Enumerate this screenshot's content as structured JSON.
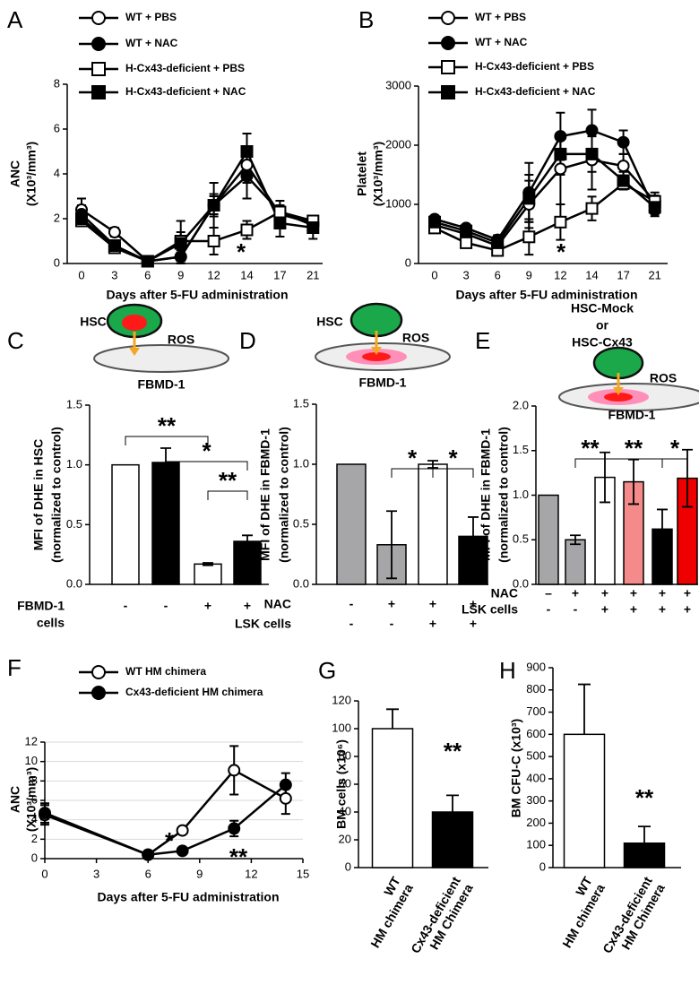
{
  "chart_data": [
    {
      "panel": "A",
      "type": "line",
      "ylabel": [
        "ANC",
        "(X10³/mm³)"
      ],
      "xlabel": "Days after 5-FU administration",
      "categories": [
        "0",
        "3",
        "6",
        "9",
        "12",
        "14",
        "17",
        "21"
      ],
      "ylim": [
        0,
        8
      ],
      "yticks": [
        0,
        2,
        4,
        6,
        8
      ],
      "series": [
        {
          "name": "WT + PBS",
          "color": "#000000",
          "marker": "circle",
          "marker_fill": "#ffffff",
          "values": [
            2.4,
            1.4,
            0.1,
            0.3,
            2.6,
            4.4,
            2.2,
            1.8
          ],
          "errors": [
            0.5,
            0.2,
            0.1,
            0.3,
            0.4,
            0.8,
            0.4,
            0.3
          ]
        },
        {
          "name": "WT + NAC",
          "color": "#000000",
          "marker": "circle",
          "marker_fill": "#000000",
          "values": [
            2.2,
            0.8,
            0.1,
            0.3,
            2.6,
            3.9,
            2.3,
            1.7
          ],
          "errors": [
            0.4,
            0.1,
            0.1,
            0.2,
            1.0,
            1.0,
            0.5,
            0.3
          ]
        },
        {
          "name": "H-Cx43-deficient + PBS",
          "color": "#000000",
          "marker": "square",
          "marker_fill": "#ffffff",
          "values": [
            1.9,
            0.7,
            0.1,
            1.0,
            1.0,
            1.5,
            2.3,
            1.9
          ],
          "errors": [
            0.2,
            0.1,
            0.1,
            0.9,
            0.6,
            0.4,
            0.3,
            0.2
          ]
        },
        {
          "name": "H-Cx43-deficient + NAC",
          "color": "#000000",
          "marker": "square",
          "marker_fill": "#000000",
          "values": [
            2.0,
            0.8,
            0.1,
            0.9,
            2.6,
            5.0,
            1.8,
            1.6
          ],
          "errors": [
            0.3,
            0.2,
            0.1,
            0.5,
            0.5,
            0.8,
            0.6,
            0.5
          ]
        }
      ],
      "annotations": [
        "*"
      ]
    },
    {
      "panel": "B",
      "type": "line",
      "ylabel": [
        "Platelet",
        "(X10³/mm³)"
      ],
      "xlabel": "Days after 5-FU administration",
      "categories": [
        "0",
        "3",
        "6",
        "9",
        "12",
        "14",
        "17",
        "21"
      ],
      "ylim": [
        0,
        3000
      ],
      "yticks": [
        0,
        1000,
        2000,
        3000
      ],
      "series": [
        {
          "name": "WT + PBS",
          "color": "#000000",
          "marker": "circle",
          "marker_fill": "#ffffff",
          "values": [
            650,
            500,
            300,
            1000,
            1600,
            1750,
            1650,
            1050
          ],
          "errors": [
            50,
            50,
            80,
            400,
            600,
            500,
            200,
            100
          ]
        },
        {
          "name": "WT + NAC",
          "color": "#000000",
          "marker": "circle",
          "marker_fill": "#000000",
          "values": [
            750,
            600,
            400,
            1200,
            2150,
            2250,
            2050,
            900
          ],
          "errors": [
            60,
            50,
            80,
            500,
            400,
            350,
            200,
            100
          ]
        },
        {
          "name": "H-Cx43-deficient + PBS",
          "color": "#000000",
          "marker": "square",
          "marker_fill": "#ffffff",
          "values": [
            600,
            350,
            220,
            450,
            700,
            930,
            1350,
            1050
          ],
          "errors": [
            50,
            50,
            50,
            300,
            300,
            200,
            100,
            150
          ]
        },
        {
          "name": "H-Cx43-deficient + NAC",
          "color": "#000000",
          "marker": "square",
          "marker_fill": "#000000",
          "values": [
            700,
            550,
            350,
            1100,
            1850,
            1850,
            1400,
            950
          ],
          "errors": [
            60,
            50,
            80,
            400,
            350,
            300,
            150,
            100
          ]
        }
      ],
      "annotations": [
        "*"
      ]
    },
    {
      "panel": "C",
      "type": "bar",
      "diagram": {
        "cell": [
          "HSC"
        ],
        "signal": "ROS",
        "stroma": "FBMD-1"
      },
      "ylabel": [
        "MFI of DHE in HSC",
        "(normalized to control)"
      ],
      "values": [
        1.0,
        1.02,
        0.17,
        0.36
      ],
      "errors": [
        null,
        0.12,
        0.01,
        0.05
      ],
      "colors": [
        "#ffffff",
        "#000000",
        "#ffffff",
        "#000000"
      ],
      "error_direction": "both",
      "ylim": [
        0,
        1.5
      ],
      "yticks": [
        {
          "value": 0,
          "label": "0.0"
        },
        0.5,
        {
          "value": 1,
          "label": "1.0"
        },
        1.5
      ],
      "conditions": [
        {
          "label": [
            "FBMD-1",
            "cells"
          ],
          "marks": [
            "-",
            "-",
            "+",
            "+"
          ]
        }
      ],
      "significance": [
        "**",
        "*",
        "**"
      ]
    },
    {
      "panel": "D",
      "type": "bar",
      "diagram": {
        "cell": [
          "HSC"
        ],
        "signal": "ROS",
        "stroma": "FBMD-1"
      },
      "ylabel": [
        "MFI of DHE in FBMD-1",
        "(normalized to control)"
      ],
      "values": [
        1.0,
        0.33,
        1.0,
        0.4
      ],
      "errors": [
        null,
        0.28,
        0.03,
        0.16
      ],
      "colors": [
        "#a6a6a8",
        "#a6a6a8",
        "#ffffff",
        "#000000"
      ],
      "error_direction": "both",
      "ylim": [
        0,
        1.5
      ],
      "yticks": [
        {
          "value": 0,
          "label": "0.0"
        },
        0.5,
        {
          "value": 1,
          "label": "1.0"
        },
        1.5
      ],
      "conditions": [
        {
          "label": [
            "NAC"
          ],
          "marks": [
            "-",
            "+",
            "+",
            "+"
          ]
        },
        {
          "label": [
            "LSK cells"
          ],
          "marks": [
            "-",
            "-",
            "+",
            "+"
          ]
        }
      ],
      "significance": [
        "*",
        "*"
      ]
    },
    {
      "panel": "E",
      "type": "bar",
      "diagram": {
        "cell": [
          "HSC-Mock",
          "or",
          "HSC-Cx43"
        ],
        "signal": "ROS",
        "stroma": "FBMD-1"
      },
      "ylabel": [
        "MFI of DHE in FBMD-1",
        "(normalized to control)"
      ],
      "values": [
        1.0,
        0.5,
        1.2,
        1.15,
        0.62,
        1.19
      ],
      "errors": [
        null,
        0.05,
        0.28,
        0.25,
        0.22,
        0.32
      ],
      "colors": [
        "#a6a6a8",
        "#a6a6a8",
        "#ffffff",
        "#f58a8a",
        "#000000",
        "#ee0000"
      ],
      "error_direction": "both",
      "ylim": [
        0,
        2
      ],
      "yticks": [
        {
          "value": 0,
          "label": "0.0"
        },
        0.5,
        {
          "value": 1,
          "label": "1.0"
        },
        1.5,
        {
          "value": 2,
          "label": "2.0"
        }
      ],
      "conditions": [
        {
          "label": [
            "NAC"
          ],
          "marks": [
            "–",
            "+",
            "+",
            "+",
            "+",
            "+"
          ]
        },
        {
          "label": [
            "LSK cells"
          ],
          "marks": [
            "-",
            "-",
            "+",
            "+",
            "+",
            "+"
          ]
        }
      ],
      "significance": [
        "**",
        "**",
        "*"
      ]
    },
    {
      "panel": "F",
      "type": "line",
      "ylabel": [
        "ANC",
        "(X10³/mm³)"
      ],
      "xlabel": "Days after 5-FU administration",
      "x": [
        0,
        6,
        8,
        11,
        14
      ],
      "xlim": [
        0,
        15
      ],
      "xticks": [
        0,
        3,
        6,
        9,
        12,
        15
      ],
      "ylim": [
        0,
        12
      ],
      "yticks": [
        0,
        2,
        4,
        6,
        8,
        10,
        12
      ],
      "grid": true,
      "series": [
        {
          "name": "WT HM chimera",
          "color": "#000000",
          "marker": "circle",
          "marker_fill": "#ffffff",
          "values": [
            4.5,
            0.4,
            2.9,
            9.1,
            6.2
          ],
          "errors": [
            1.0,
            0.1,
            0.2,
            2.5,
            1.6
          ]
        },
        {
          "name": "Cx43-deficient HM chimera",
          "color": "#000000",
          "marker": "circle",
          "marker_fill": "#000000",
          "values": [
            4.7,
            0.4,
            0.8,
            3.1,
            7.6
          ],
          "errors": [
            1.0,
            0.1,
            0.1,
            0.8,
            1.2
          ]
        }
      ],
      "annotations": [
        "*",
        "**"
      ]
    },
    {
      "panel": "G",
      "type": "bar",
      "ylabel": [
        "BM cells (x10⁶)"
      ],
      "categories": [
        [
          "WT",
          "HM chimera"
        ],
        [
          "Cx43-deficient",
          "HM Chimera"
        ]
      ],
      "values": [
        100,
        40
      ],
      "errors": [
        14,
        12
      ],
      "colors": [
        "#ffffff",
        "#000000"
      ],
      "error_direction": "up",
      "ylim": [
        0,
        120
      ],
      "yticks": [
        0,
        20,
        40,
        60,
        80,
        100,
        120
      ],
      "annotations": [
        "**"
      ]
    },
    {
      "panel": "H",
      "type": "bar",
      "ylabel": [
        "BM CFU-C  (x10³)"
      ],
      "categories": [
        [
          "WT",
          "HM chimera"
        ],
        [
          "Cx43-deficient",
          "HM Chimera"
        ]
      ],
      "values": [
        600,
        110
      ],
      "errors": [
        225,
        75
      ],
      "colors": [
        "#ffffff",
        "#000000"
      ],
      "error_direction": "up",
      "ylim": [
        0,
        900
      ],
      "yticks": [
        0,
        100,
        200,
        300,
        400,
        500,
        600,
        700,
        800,
        900
      ],
      "annotations": [
        "**"
      ]
    }
  ]
}
